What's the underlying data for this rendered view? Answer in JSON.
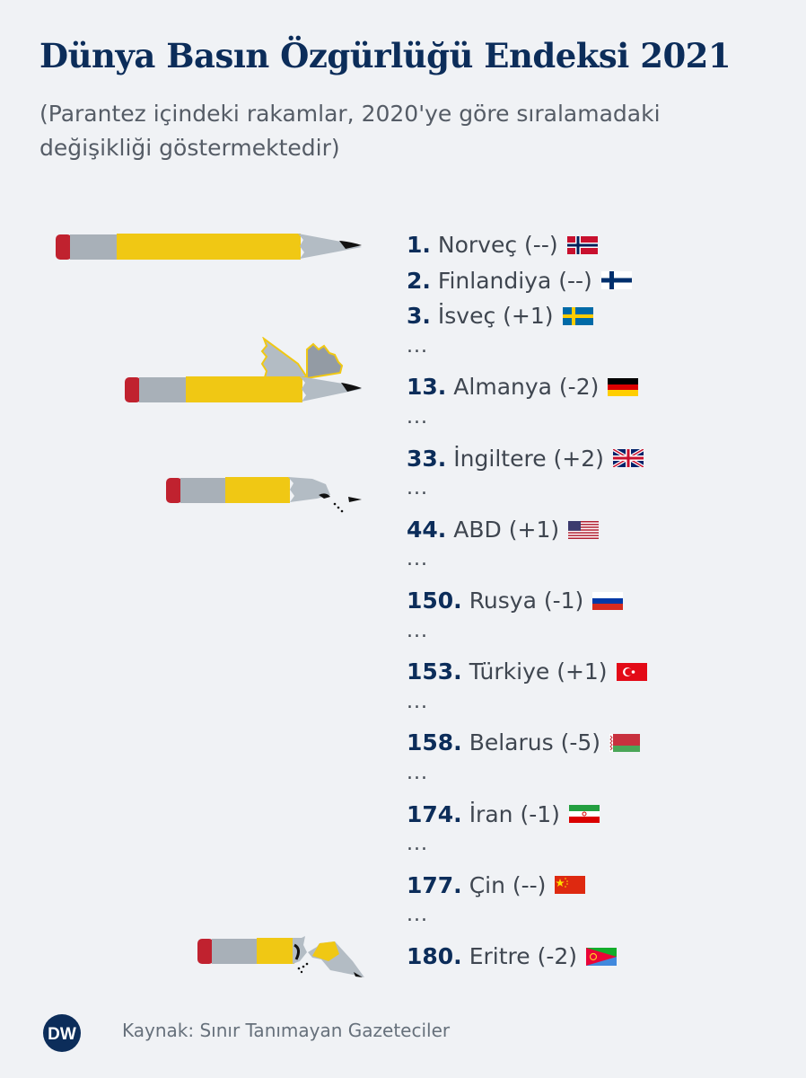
{
  "title": "Dünya Basın Özgürlüğü Endeksi 2021",
  "subtitle": "(Parantez içindeki rakamlar, 2020'ye göre sıralamadaki değişikliği göstermektedir)",
  "ellipsis": "...",
  "rankings": [
    {
      "rank": "1.",
      "country": "Norveç (--)",
      "flag": "norway-flag"
    },
    {
      "rank": "2.",
      "country": "Finlandiya (--)",
      "flag": "finland-flag"
    },
    {
      "rank": "3.",
      "country": "İsveç (+1)",
      "flag": "sweden-flag",
      "after_ellipsis": true
    },
    {
      "rank": "13.",
      "country": "Almanya (-2)",
      "flag": "germany-flag",
      "after_ellipsis": true
    },
    {
      "rank": "33.",
      "country": "İngiltere (+2)",
      "flag": "uk-flag",
      "after_ellipsis": true
    },
    {
      "rank": "44.",
      "country": "ABD (+1)",
      "flag": "usa-flag",
      "after_ellipsis": true
    },
    {
      "rank": "150.",
      "country": "Rusya (-1)",
      "flag": "russia-flag",
      "after_ellipsis": true
    },
    {
      "rank": "153.",
      "country": "Türkiye (+1)",
      "flag": "turkey-flag",
      "after_ellipsis": true
    },
    {
      "rank": "158.",
      "country": "Belarus (-5)",
      "flag": "belarus-flag",
      "after_ellipsis": true
    },
    {
      "rank": "174.",
      "country": "İran (-1)",
      "flag": "iran-flag",
      "after_ellipsis": true
    },
    {
      "rank": "177.",
      "country": "Çin (--)",
      "flag": "china-flag",
      "after_ellipsis": true
    },
    {
      "rank": "180.",
      "country": "Eritre (-2)",
      "flag": "eritrea-flag"
    }
  ],
  "footer": {
    "source": "Kaynak: Sınır Tanımayan Gazeteciler",
    "logo": "DW"
  },
  "colors": {
    "title": "#0c2d5a",
    "pencil_yellow": "#f0c814",
    "eraser_red": "#c0222f",
    "metal_gray": "#a8b0b8"
  }
}
